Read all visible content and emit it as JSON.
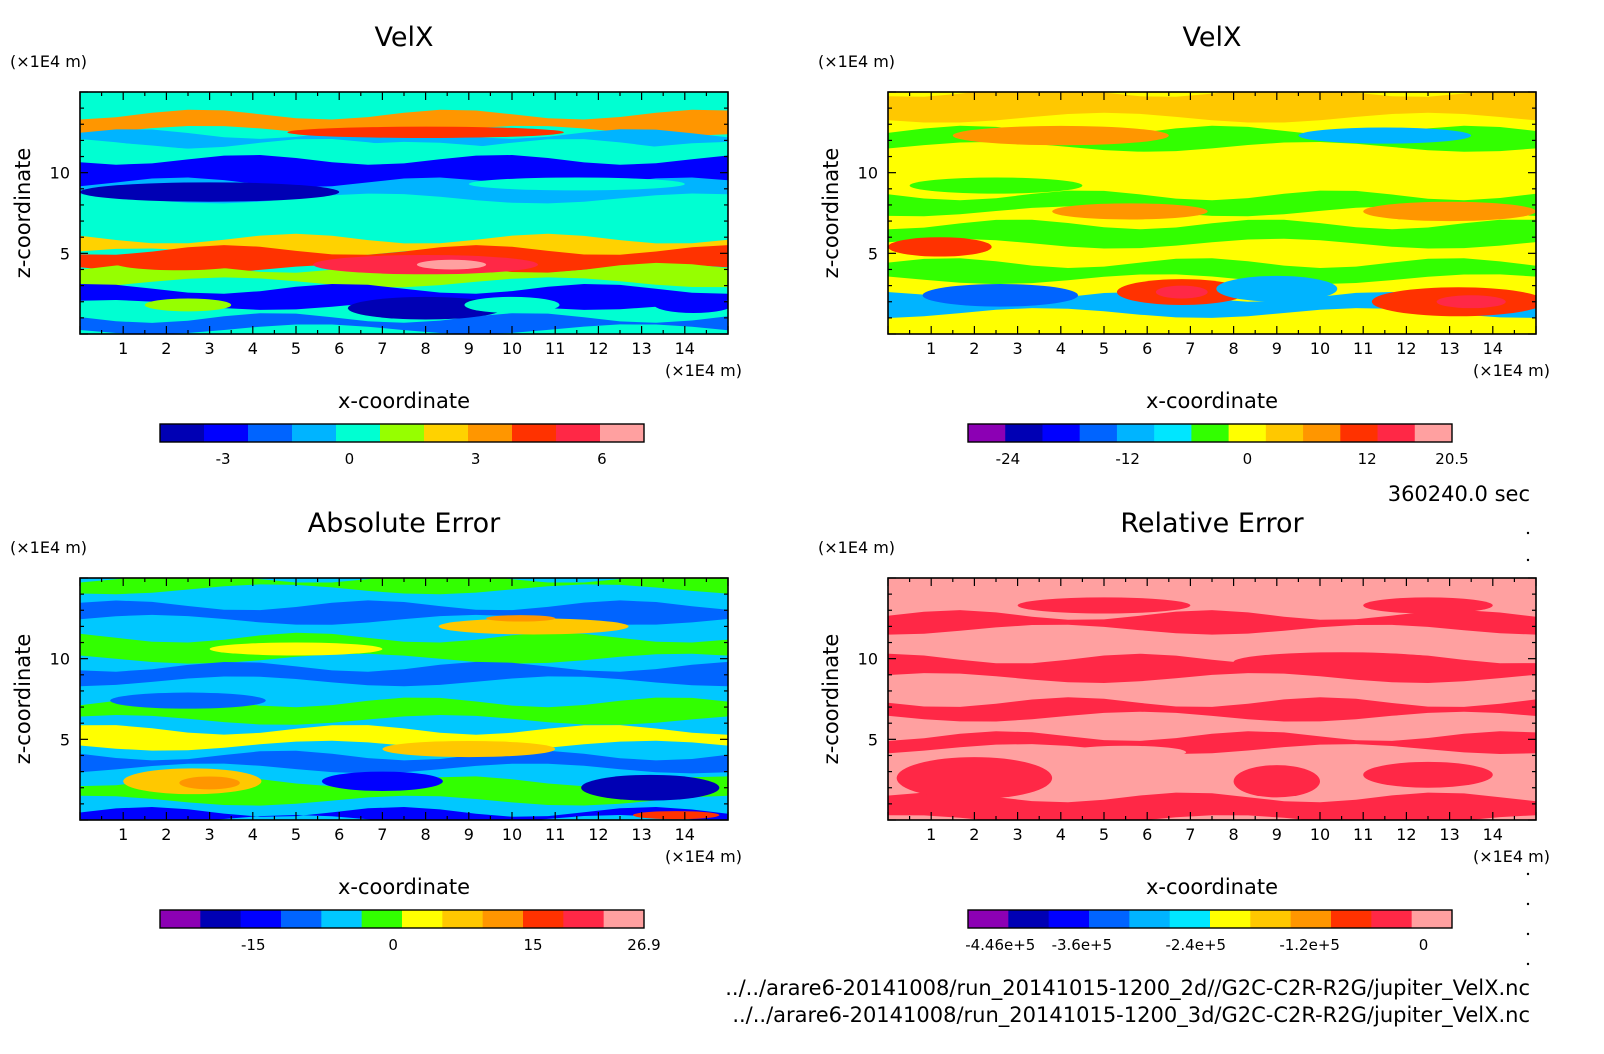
{
  "figure": {
    "time_label": "360240.0 sec",
    "file_paths": [
      "../../arare6-20141008/run_20141015-1200_2d//G2C-C2R-R2G/jupiter_VelX.nc",
      "../../arare6-20141008/run_20141015-1200_3d/G2C-C2R-R2G/jupiter_VelX.nc"
    ]
  },
  "chart_data": [
    {
      "type": "heatmap",
      "title": "VelX",
      "xlabel": "x-coordinate",
      "ylabel": "z-coordinate",
      "x_unit": "(×1E4 m)",
      "y_unit": "(×1E4 m)",
      "xlim": [
        0,
        15
      ],
      "ylim": [
        0,
        15
      ],
      "x_ticks": [
        1,
        2,
        3,
        4,
        5,
        6,
        7,
        8,
        9,
        10,
        11,
        12,
        13,
        14
      ],
      "y_ticks": [
        5,
        10
      ],
      "colorbar": {
        "min": -4.5,
        "max": 7,
        "ticks": [
          -3,
          0,
          3,
          6
        ],
        "tick_labels": [
          "-3",
          "0",
          "3",
          "6"
        ],
        "colors": [
          "#0000b4",
          "#0000ff",
          "#0064ff",
          "#00b4ff",
          "#00ffd2",
          "#96ff00",
          "#ffd200",
          "#ff9600",
          "#ff3200",
          "#ff2846",
          "#ffa0a0"
        ]
      },
      "background_level": 4,
      "bands": [
        {
          "y": 14.2,
          "h": 1.0,
          "level": 4
        },
        {
          "y": 12.6,
          "h": 1.0,
          "level": 7
        },
        {
          "y": 11.6,
          "h": 0.8,
          "level": 3
        },
        {
          "y": 10.8,
          "h": 1.0,
          "level": 4
        },
        {
          "y": 9.2,
          "h": 1.6,
          "level": 1
        },
        {
          "y": 8.4,
          "h": 1.0,
          "level": 3
        },
        {
          "y": 6.9,
          "h": 1.0,
          "level": 4
        },
        {
          "y": 5.0,
          "h": 0.9,
          "level": 6
        },
        {
          "y": 4.0,
          "h": 1.2,
          "level": 8
        },
        {
          "y": 3.2,
          "h": 0.9,
          "level": 5
        },
        {
          "y": 1.8,
          "h": 1.0,
          "level": 1
        },
        {
          "y": 0.3,
          "h": 0.7,
          "level": 2
        }
      ],
      "blobs": [
        {
          "x": 8.0,
          "y": 4.3,
          "rx": 2.6,
          "ry": 0.6,
          "level": 9
        },
        {
          "x": 8.6,
          "y": 4.3,
          "rx": 0.8,
          "ry": 0.3,
          "level": 10
        },
        {
          "x": 2.3,
          "y": 4.4,
          "rx": 1.5,
          "ry": 0.45,
          "level": 8
        },
        {
          "x": 8.0,
          "y": 1.6,
          "rx": 1.8,
          "ry": 0.7,
          "level": 0
        },
        {
          "x": 14.2,
          "y": 1.8,
          "rx": 0.9,
          "ry": 0.5,
          "level": 1
        },
        {
          "x": 2.5,
          "y": 1.8,
          "rx": 1.0,
          "ry": 0.4,
          "level": 5
        },
        {
          "x": 10.0,
          "y": 1.8,
          "rx": 1.1,
          "ry": 0.5,
          "level": 4
        },
        {
          "x": 8.0,
          "y": 12.5,
          "rx": 3.2,
          "ry": 0.35,
          "level": 8
        },
        {
          "x": 3.0,
          "y": 8.8,
          "rx": 3.0,
          "ry": 0.6,
          "level": 0
        },
        {
          "x": 11.0,
          "y": 7.0,
          "rx": 2.8,
          "ry": 0.6,
          "level": 4
        },
        {
          "x": 11.5,
          "y": 9.3,
          "rx": 2.5,
          "ry": 0.4,
          "level": 4
        }
      ]
    },
    {
      "type": "heatmap",
      "title": "VelX",
      "xlabel": "x-coordinate",
      "ylabel": "z-coordinate",
      "x_unit": "(×1E4 m)",
      "y_unit": "(×1E4 m)",
      "xlim": [
        0,
        15
      ],
      "ylim": [
        0,
        15
      ],
      "x_ticks": [
        1,
        2,
        3,
        4,
        5,
        6,
        7,
        8,
        9,
        10,
        11,
        12,
        13,
        14
      ],
      "y_ticks": [
        5,
        10
      ],
      "colorbar": {
        "min": -28,
        "max": 20.5,
        "ticks": [
          -24,
          -12,
          0,
          12,
          20.5
        ],
        "tick_labels": [
          "-24",
          "-12",
          "0",
          "12",
          "20.5"
        ],
        "colors": [
          "#8c00b4",
          "#0000b4",
          "#0000ff",
          "#0064ff",
          "#00b4ff",
          "#00e6ff",
          "#32ff00",
          "#ffff00",
          "#ffc800",
          "#ff9600",
          "#ff3200",
          "#ff2846",
          "#ffa0a0"
        ]
      },
      "background_level": 7,
      "bands": [
        {
          "y": 13.4,
          "h": 1.6,
          "level": 8
        },
        {
          "y": 11.6,
          "h": 1.0,
          "level": 6
        },
        {
          "y": 9.8,
          "h": 1.2,
          "level": 7
        },
        {
          "y": 7.6,
          "h": 1.0,
          "level": 6
        },
        {
          "y": 5.6,
          "h": 1.2,
          "level": 6
        },
        {
          "y": 3.4,
          "h": 1.0,
          "level": 6
        },
        {
          "y": 1.3,
          "h": 1.0,
          "level": 4
        },
        {
          "y": 0.0,
          "h": 0.6,
          "level": 7
        }
      ],
      "blobs": [
        {
          "x": 1.2,
          "y": 5.4,
          "rx": 1.2,
          "ry": 0.6,
          "level": 10
        },
        {
          "x": 5.6,
          "y": 7.6,
          "rx": 1.8,
          "ry": 0.5,
          "level": 9
        },
        {
          "x": 6.8,
          "y": 2.6,
          "rx": 1.5,
          "ry": 0.8,
          "level": 10
        },
        {
          "x": 6.8,
          "y": 2.6,
          "rx": 0.6,
          "ry": 0.4,
          "level": 11
        },
        {
          "x": 13.2,
          "y": 2.0,
          "rx": 2.0,
          "ry": 0.9,
          "level": 10
        },
        {
          "x": 13.5,
          "y": 2.0,
          "rx": 0.8,
          "ry": 0.4,
          "level": 11
        },
        {
          "x": 2.6,
          "y": 2.4,
          "rx": 1.8,
          "ry": 0.7,
          "level": 3
        },
        {
          "x": 9.0,
          "y": 2.8,
          "rx": 1.4,
          "ry": 0.8,
          "level": 4
        },
        {
          "x": 11.5,
          "y": 12.3,
          "rx": 2.0,
          "ry": 0.5,
          "level": 4
        },
        {
          "x": 4.0,
          "y": 12.3,
          "rx": 2.5,
          "ry": 0.6,
          "level": 9
        },
        {
          "x": 13.0,
          "y": 7.6,
          "rx": 2.0,
          "ry": 0.6,
          "level": 9
        },
        {
          "x": 2.5,
          "y": 9.2,
          "rx": 2.0,
          "ry": 0.5,
          "level": 6
        }
      ]
    },
    {
      "type": "heatmap",
      "title": "Absolute Error",
      "xlabel": "x-coordinate",
      "ylabel": "z-coordinate",
      "x_unit": "(×1E4 m)",
      "y_unit": "(×1E4 m)",
      "xlim": [
        0,
        15
      ],
      "ylim": [
        0,
        15
      ],
      "x_ticks": [
        1,
        2,
        3,
        4,
        5,
        6,
        7,
        8,
        9,
        10,
        11,
        12,
        13,
        14
      ],
      "y_ticks": [
        5,
        10
      ],
      "colorbar": {
        "min": -25,
        "max": 26.9,
        "ticks": [
          -15,
          0,
          15,
          26.9
        ],
        "tick_labels": [
          "-15",
          "0",
          "15",
          "26.9"
        ],
        "colors": [
          "#8c00b4",
          "#0000b4",
          "#0000ff",
          "#0064ff",
          "#00c8ff",
          "#32ff00",
          "#ffff00",
          "#ffc800",
          "#ff9600",
          "#ff3200",
          "#ff2846",
          "#ffa0a0"
        ]
      },
      "background_level": 4,
      "bands": [
        {
          "y": 14.3,
          "h": 0.7,
          "level": 5
        },
        {
          "y": 12.4,
          "h": 0.9,
          "level": 3
        },
        {
          "y": 10.0,
          "h": 1.3,
          "level": 5
        },
        {
          "y": 8.6,
          "h": 0.9,
          "level": 3
        },
        {
          "y": 6.2,
          "h": 1.1,
          "level": 5
        },
        {
          "y": 4.6,
          "h": 1.0,
          "level": 6
        },
        {
          "y": 3.2,
          "h": 0.8,
          "level": 3
        },
        {
          "y": 1.2,
          "h": 1.2,
          "level": 5
        },
        {
          "y": 0.0,
          "h": 0.5,
          "level": 2
        }
      ],
      "blobs": [
        {
          "x": 2.6,
          "y": 2.4,
          "rx": 1.6,
          "ry": 0.8,
          "level": 7
        },
        {
          "x": 3.0,
          "y": 2.3,
          "rx": 0.7,
          "ry": 0.4,
          "level": 8
        },
        {
          "x": 13.2,
          "y": 2.0,
          "rx": 1.6,
          "ry": 0.8,
          "level": 1
        },
        {
          "x": 7.0,
          "y": 2.4,
          "rx": 1.4,
          "ry": 0.6,
          "level": 2
        },
        {
          "x": 9.0,
          "y": 4.4,
          "rx": 2.0,
          "ry": 0.5,
          "level": 7
        },
        {
          "x": 10.5,
          "y": 12.0,
          "rx": 2.2,
          "ry": 0.5,
          "level": 7
        },
        {
          "x": 5.0,
          "y": 10.6,
          "rx": 2.0,
          "ry": 0.4,
          "level": 6
        },
        {
          "x": 10.2,
          "y": 12.5,
          "rx": 0.8,
          "ry": 0.2,
          "level": 8
        },
        {
          "x": 13.8,
          "y": 0.3,
          "rx": 1.0,
          "ry": 0.25,
          "level": 9
        },
        {
          "x": 2.5,
          "y": 7.4,
          "rx": 1.8,
          "ry": 0.5,
          "level": 3
        }
      ]
    },
    {
      "type": "heatmap",
      "title": "Relative Error",
      "xlabel": "x-coordinate",
      "ylabel": "z-coordinate",
      "x_unit": "(×1E4 m)",
      "y_unit": "(×1E4 m)",
      "xlim": [
        0,
        15
      ],
      "ylim": [
        0,
        15
      ],
      "x_ticks": [
        1,
        2,
        3,
        4,
        5,
        6,
        7,
        8,
        9,
        10,
        11,
        12,
        13,
        14
      ],
      "y_ticks": [
        5,
        10
      ],
      "colorbar": {
        "min": -4.8,
        "max": 0.3,
        "ticks": [
          -4.46,
          -3.6,
          -2.4,
          -1.2,
          0
        ],
        "tick_labels": [
          "-4.46e+5",
          "-3.6e+5",
          "-2.4e+5",
          "-1.2e+5",
          "0"
        ],
        "colors": [
          "#8c00b4",
          "#0000b4",
          "#0000ff",
          "#0064ff",
          "#00b4ff",
          "#00e6ff",
          "#ffff00",
          "#ffc800",
          "#ff9600",
          "#ff3200",
          "#ff2846",
          "#ffa0a0"
        ]
      },
      "background_level": 11,
      "bands": [
        {
          "y": 11.8,
          "h": 0.9,
          "level": 10
        },
        {
          "y": 8.8,
          "h": 1.2,
          "level": 10
        },
        {
          "y": 6.4,
          "h": 0.9,
          "level": 10
        },
        {
          "y": 4.4,
          "h": 0.8,
          "level": 10
        },
        {
          "y": 0.0,
          "h": 1.4,
          "level": 10
        }
      ],
      "blobs": [
        {
          "x": 2.0,
          "y": 2.6,
          "rx": 1.8,
          "ry": 1.3,
          "level": 10
        },
        {
          "x": 9.0,
          "y": 2.4,
          "rx": 1.0,
          "ry": 1.0,
          "level": 10
        },
        {
          "x": 12.5,
          "y": 2.8,
          "rx": 1.5,
          "ry": 0.8,
          "level": 10
        },
        {
          "x": 10.5,
          "y": 9.8,
          "rx": 2.5,
          "ry": 0.6,
          "level": 10
        },
        {
          "x": 5.0,
          "y": 13.3,
          "rx": 2.0,
          "ry": 0.5,
          "level": 10
        },
        {
          "x": 12.5,
          "y": 13.3,
          "rx": 1.5,
          "ry": 0.5,
          "level": 10
        },
        {
          "x": 5.5,
          "y": 4.2,
          "rx": 1.4,
          "ry": 0.4,
          "level": 11
        }
      ]
    }
  ]
}
